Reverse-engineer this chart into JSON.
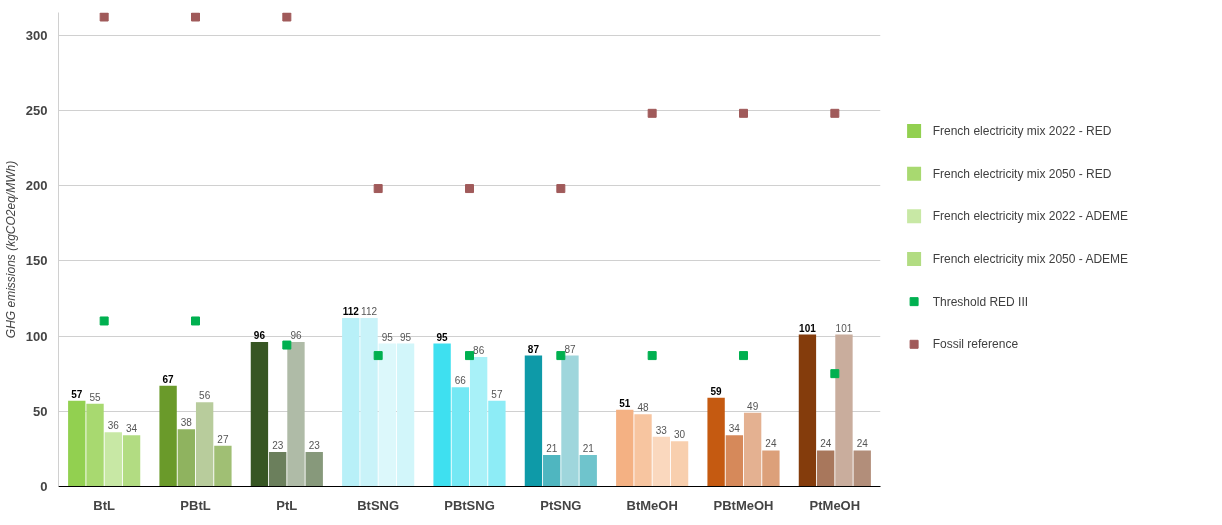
{
  "chart_data": {
    "type": "bar",
    "ylabel": "GHG emissions (kgCO2eq/MWh)",
    "categories": [
      "BtL",
      "PBtL",
      "PtL",
      "BtSNG",
      "PBtSNG",
      "PtSNG",
      "BtMeOH",
      "PBtMeOH",
      "PtMeOH"
    ],
    "series": [
      {
        "name": "French electricity mix 2022 - RED",
        "values": [
          57,
          67,
          96,
          112,
          95,
          87,
          51,
          59,
          101
        ],
        "value_labels": [
          "57",
          "67",
          "96",
          "112",
          "95",
          "87",
          "51",
          "59",
          "101"
        ],
        "colors": [
          "#92d050",
          "#6a9a2a",
          "#375623",
          "#b8f0f8",
          "#3ee0f0",
          "#0e9aa8",
          "#f4b183",
          "#c55a11",
          "#843c0c"
        ]
      },
      {
        "name": "French electricity mix 2050 - RED",
        "values": [
          55,
          38,
          23,
          112,
          66,
          21,
          48,
          34,
          24
        ],
        "value_labels": [
          "55",
          "38",
          "23",
          "112",
          "66",
          "21",
          "48",
          "34",
          "24"
        ],
        "colors": [
          "#a8d970",
          "#8fb35f",
          "#6b7f5c",
          "#c9f3f9",
          "#74e8f4",
          "#4fb6c0",
          "#f7c5a0",
          "#d6895a",
          "#a8775c"
        ]
      },
      {
        "name": "French electricity mix 2022 -  ADEME",
        "values": [
          36,
          56,
          96,
          95,
          86,
          87,
          33,
          49,
          101
        ],
        "value_labels": [
          "36",
          "56",
          "96",
          "95",
          "86",
          "87",
          "33",
          "49",
          "101"
        ],
        "colors": [
          "#c8e8a5",
          "#b8cc9c",
          "#afbba7",
          "#dcf8fb",
          "#a8f1f8",
          "#9fd6dc",
          "#fad8be",
          "#e4b191",
          "#c9ad9d"
        ]
      },
      {
        "name": "French electricity mix 2050 -  ADEME",
        "values": [
          34,
          27,
          23,
          95,
          57,
          21,
          30,
          24,
          24
        ],
        "value_labels": [
          "34",
          "27",
          "23",
          "95",
          "57",
          "21",
          "30",
          "24",
          "24"
        ],
        "colors": [
          "#b2dc82",
          "#a0bf74",
          "#87997b",
          "#d2f6fa",
          "#8decf6",
          "#6fc4cc",
          "#f8cfae",
          "#dca07a",
          "#b28e7a"
        ]
      },
      {
        "name": "Threshold RED III",
        "type": "scatter",
        "marker": "square",
        "color": "#00b050",
        "values": [
          110,
          110,
          94,
          87,
          87,
          87,
          87,
          87,
          75
        ]
      },
      {
        "name": "Fossil reference",
        "type": "scatter",
        "marker": "square",
        "color": "#a05a5a",
        "values": [
          312,
          312,
          312,
          198,
          198,
          198,
          248,
          248,
          248
        ]
      }
    ],
    "ylim": [
      0,
      315
    ],
    "yticks": [
      0,
      50,
      100,
      150,
      200,
      250,
      300
    ],
    "grid": "y",
    "legend": "right"
  }
}
